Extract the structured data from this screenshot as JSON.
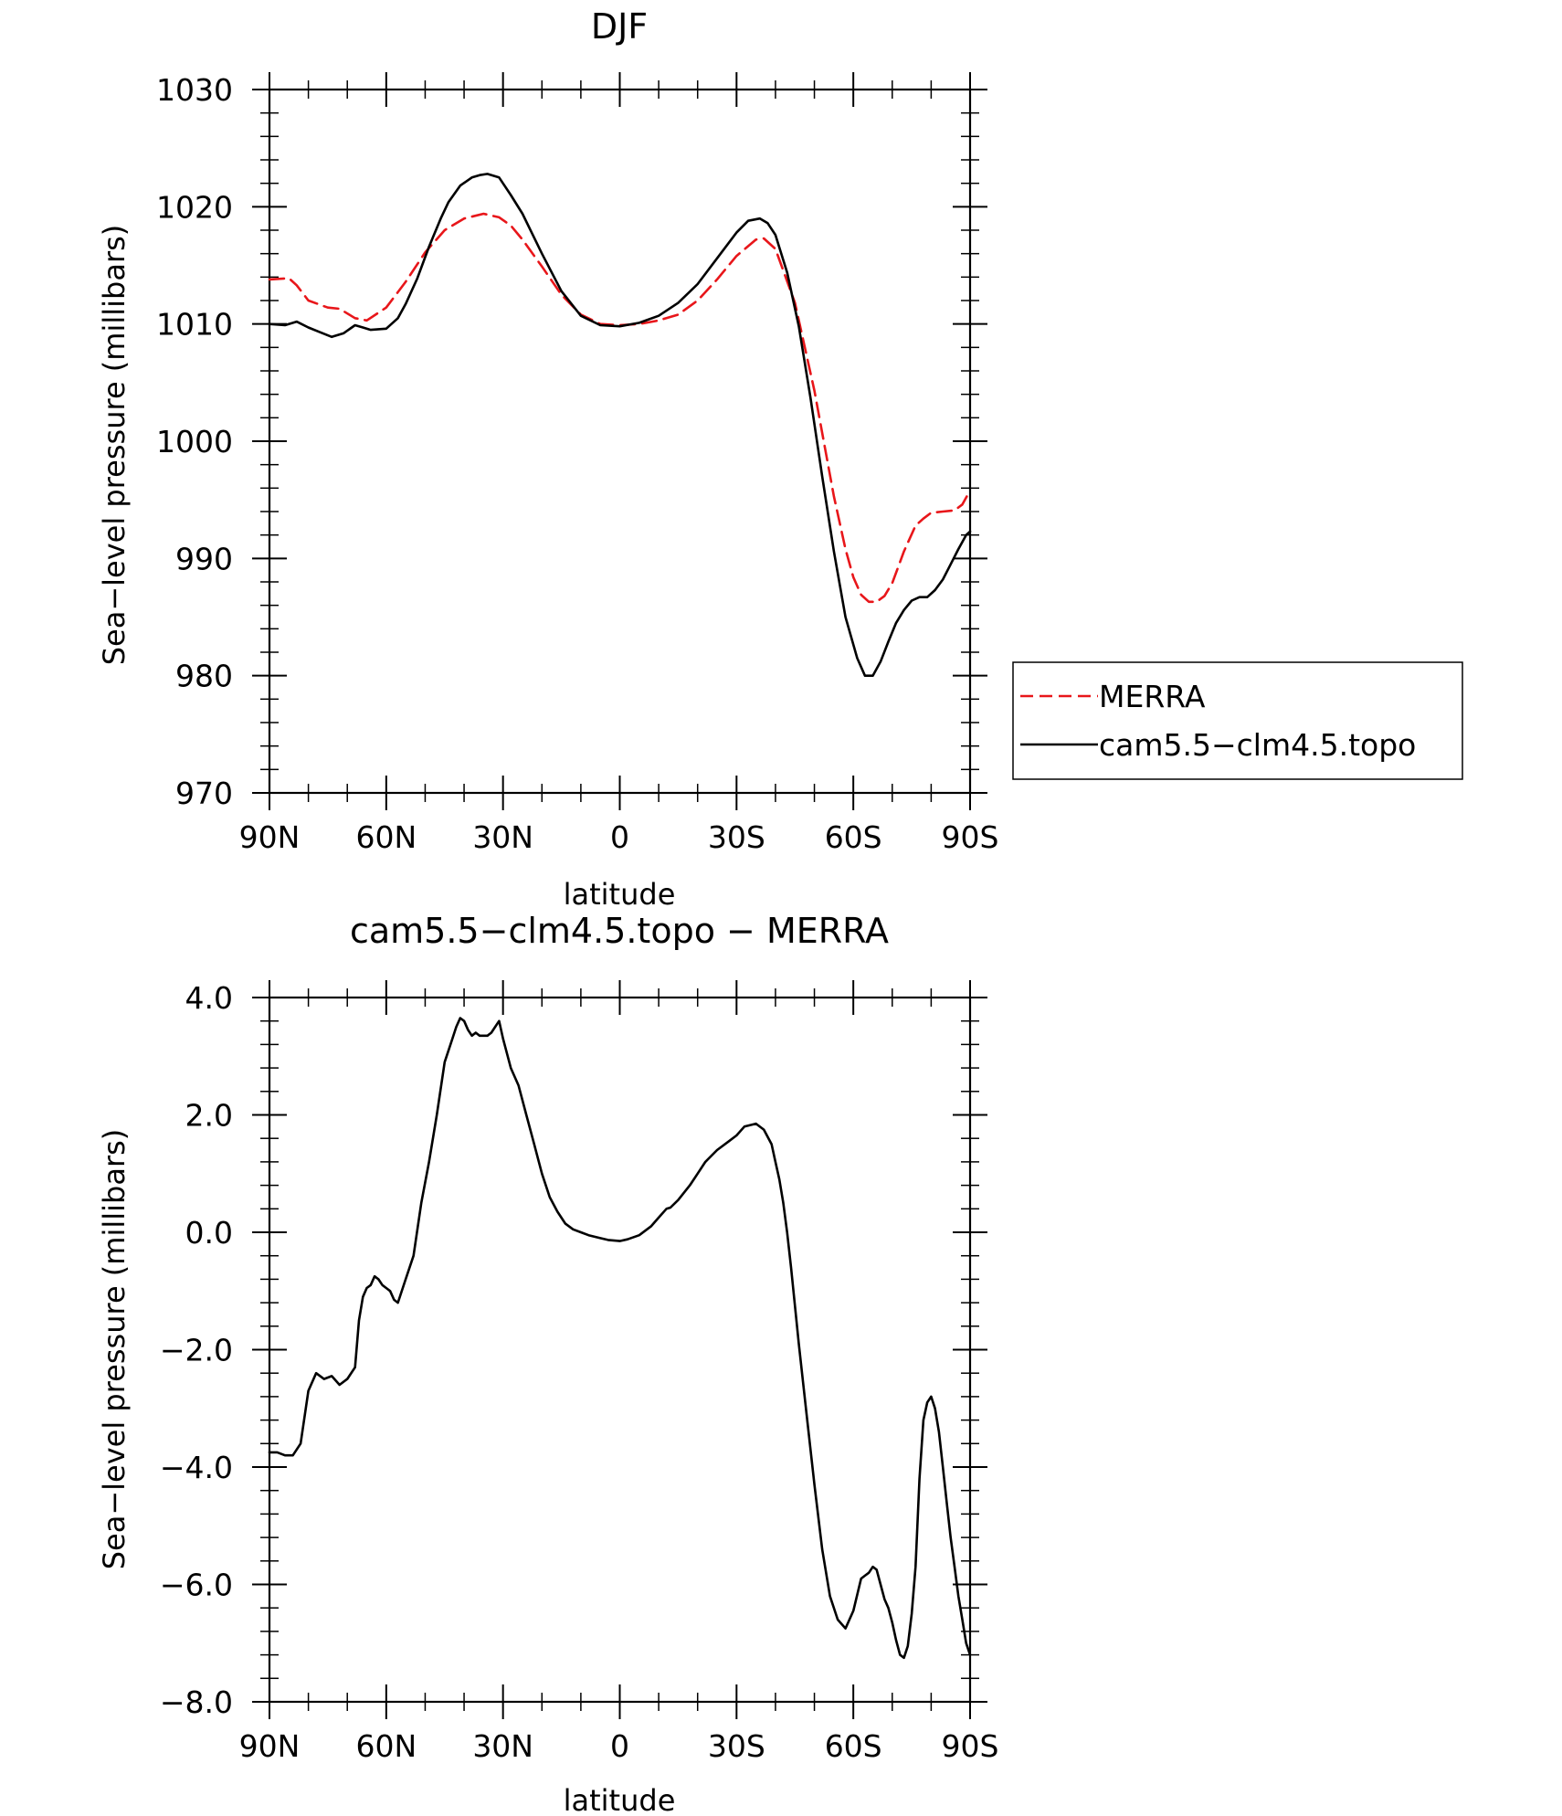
{
  "figure": {
    "top_title": "DJF",
    "bottom_title": "cam5.5−clm4.5.topo  −  MERRA"
  },
  "chart_data": [
    {
      "type": "line",
      "title": "DJF",
      "xlabel": "latitude",
      "ylabel": "Sea−level pressure (millibars)",
      "xlim": [
        90,
        -90
      ],
      "ylim": [
        970,
        1030
      ],
      "x_ticks": [
        90,
        60,
        30,
        0,
        -30,
        -60,
        -90
      ],
      "x_tick_labels": [
        "90N",
        "60N",
        "30N",
        "0",
        "30S",
        "60S",
        "90S"
      ],
      "y_ticks": [
        970,
        980,
        990,
        1000,
        1010,
        1020,
        1030
      ],
      "y_tick_labels": [
        "970",
        "980",
        "990",
        "1000",
        "1010",
        "1020",
        "1030"
      ],
      "grid": false,
      "legend_position": "right, outside plot",
      "series": [
        {
          "name": "MERRA",
          "color": "#e8161a",
          "dash": "dashed",
          "x": [
            90,
            85,
            83,
            80,
            75,
            72,
            68,
            65,
            60,
            55,
            50,
            45,
            40,
            35,
            31,
            28,
            25,
            20,
            15,
            10,
            5,
            0,
            -5,
            -10,
            -15,
            -20,
            -25,
            -30,
            -35,
            -37,
            -40,
            -45,
            -50,
            -55,
            -58,
            -60,
            -62,
            -64,
            -66,
            -68,
            -70,
            -73,
            -76,
            -78,
            -80,
            -83,
            -86,
            -88,
            -90
          ],
          "y": [
            1013.8,
            1013.9,
            1013.3,
            1012.0,
            1011.4,
            1011.3,
            1010.5,
            1010.3,
            1011.4,
            1013.6,
            1016.1,
            1018.0,
            1019.0,
            1019.4,
            1019.1,
            1018.4,
            1017.2,
            1014.9,
            1012.5,
            1010.8,
            1010.0,
            1009.9,
            1010.0,
            1010.3,
            1010.8,
            1012.0,
            1013.8,
            1015.8,
            1017.2,
            1017.3,
            1016.4,
            1011.8,
            1004.3,
            995.3,
            990.8,
            988.4,
            986.9,
            986.3,
            986.3,
            986.8,
            987.9,
            990.6,
            992.8,
            993.4,
            993.9,
            994.0,
            994.1,
            994.6,
            995.8
          ]
        },
        {
          "name": "cam5.5−clm4.5.topo",
          "color": "#000000",
          "dash": "solid",
          "x": [
            90,
            86,
            83,
            80,
            77,
            74,
            71,
            68,
            66,
            64,
            60,
            57,
            55,
            52,
            49,
            46,
            44,
            41,
            38,
            36,
            34,
            31,
            28,
            25,
            20,
            15,
            10,
            5,
            0,
            -5,
            -10,
            -15,
            -20,
            -25,
            -30,
            -33,
            -36,
            -38,
            -40,
            -43,
            -46,
            -49,
            -52,
            -55,
            -58,
            -61,
            -63,
            -65,
            -67,
            -69,
            -71,
            -73,
            -75,
            -77,
            -79,
            -81,
            -83,
            -85,
            -87,
            -89,
            -90
          ],
          "y": [
            1010.0,
            1009.9,
            1010.2,
            1009.7,
            1009.3,
            1008.9,
            1009.2,
            1009.9,
            1009.7,
            1009.5,
            1009.6,
            1010.5,
            1011.7,
            1013.9,
            1016.6,
            1019.0,
            1020.4,
            1021.8,
            1022.5,
            1022.7,
            1022.8,
            1022.5,
            1021.0,
            1019.4,
            1016.0,
            1012.8,
            1010.7,
            1009.9,
            1009.8,
            1010.1,
            1010.7,
            1011.8,
            1013.4,
            1015.6,
            1017.8,
            1018.8,
            1019.0,
            1018.6,
            1017.6,
            1014.4,
            1009.8,
            1003.7,
            997.0,
            990.6,
            985.0,
            981.5,
            980.0,
            980.0,
            981.2,
            982.9,
            984.5,
            985.6,
            986.4,
            986.7,
            986.7,
            987.3,
            988.2,
            989.5,
            990.8,
            992.0,
            992.3
          ]
        }
      ]
    },
    {
      "type": "line",
      "title": "cam5.5−clm4.5.topo  −  MERRA",
      "xlabel": "latitude",
      "ylabel": "Sea−level pressure (millibars)",
      "xlim": [
        90,
        -90
      ],
      "ylim": [
        -8,
        4
      ],
      "x_ticks": [
        90,
        60,
        30,
        0,
        -30,
        -60,
        -90
      ],
      "x_tick_labels": [
        "90N",
        "60N",
        "30N",
        "0",
        "30S",
        "60S",
        "90S"
      ],
      "y_ticks": [
        -8,
        -6,
        -4,
        -2,
        0,
        2,
        4
      ],
      "y_tick_labels": [
        "−8.0",
        "−6.0",
        "−4.0",
        "−2.0",
        "0.0",
        "2.0",
        "4.0"
      ],
      "grid": false,
      "series": [
        {
          "color": "#000000",
          "dash": "solid",
          "x": [
            90,
            88,
            86,
            84,
            82,
            80,
            78,
            76,
            74,
            72,
            70,
            68,
            67,
            66,
            65,
            64,
            63,
            62,
            61,
            60,
            59,
            58,
            57,
            55,
            53,
            51,
            49,
            47,
            45,
            43,
            42,
            41,
            40,
            39,
            38,
            37,
            36,
            35,
            34,
            33,
            32,
            31,
            30,
            28,
            26,
            24,
            22,
            20,
            18,
            16,
            14,
            12,
            10,
            8,
            5,
            3,
            0,
            -2,
            -5,
            -8,
            -10,
            -12,
            -13,
            -15,
            -18,
            -20,
            -22,
            -25,
            -28,
            -30,
            -32,
            -35,
            -37,
            -39,
            -40,
            -41,
            -42,
            -43,
            -44,
            -46,
            -48,
            -50,
            -52,
            -54,
            -56,
            -58,
            -60,
            -62,
            -63,
            -64,
            -65,
            -66,
            -67,
            -68,
            -69,
            -70,
            -71,
            -72,
            -73,
            -74,
            -75,
            -76,
            -77,
            -78,
            -79,
            -80,
            -81,
            -82,
            -83,
            -84,
            -85,
            -86,
            -87,
            -88,
            -89,
            -90
          ],
          "y": [
            -3.75,
            -3.75,
            -3.8,
            -3.8,
            -3.6,
            -2.7,
            -2.4,
            -2.5,
            -2.45,
            -2.6,
            -2.5,
            -2.3,
            -1.5,
            -1.1,
            -0.95,
            -0.9,
            -0.75,
            -0.8,
            -0.9,
            -0.95,
            -1.0,
            -1.15,
            -1.2,
            -0.8,
            -0.4,
            0.5,
            1.2,
            2.0,
            2.9,
            3.3,
            3.5,
            3.65,
            3.6,
            3.45,
            3.35,
            3.4,
            3.35,
            3.35,
            3.35,
            3.4,
            3.5,
            3.6,
            3.3,
            2.8,
            2.5,
            2.0,
            1.5,
            1.0,
            0.6,
            0.35,
            0.15,
            0.05,
            0.0,
            -0.05,
            -0.1,
            -0.13,
            -0.15,
            -0.12,
            -0.05,
            0.1,
            0.25,
            0.4,
            0.42,
            0.55,
            0.8,
            1.0,
            1.2,
            1.4,
            1.55,
            1.65,
            1.8,
            1.85,
            1.75,
            1.5,
            1.2,
            0.9,
            0.5,
            0.0,
            -0.6,
            -1.9,
            -3.1,
            -4.3,
            -5.4,
            -6.2,
            -6.6,
            -6.75,
            -6.45,
            -5.9,
            -5.85,
            -5.8,
            -5.7,
            -5.75,
            -6.0,
            -6.25,
            -6.4,
            -6.65,
            -6.95,
            -7.2,
            -7.25,
            -7.05,
            -6.5,
            -5.7,
            -4.2,
            -3.2,
            -2.9,
            -2.8,
            -3.0,
            -3.4,
            -4.0,
            -4.6,
            -5.2,
            -5.7,
            -6.2,
            -6.6,
            -7.0,
            -7.2
          ]
        }
      ]
    }
  ]
}
